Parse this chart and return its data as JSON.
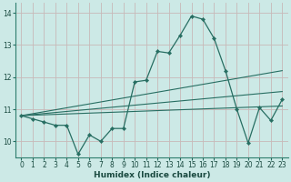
{
  "x": [
    0,
    1,
    2,
    3,
    4,
    5,
    6,
    7,
    8,
    9,
    10,
    11,
    12,
    13,
    14,
    15,
    16,
    17,
    18,
    19,
    20,
    21,
    22,
    23
  ],
  "y_main": [
    10.8,
    10.7,
    10.6,
    10.5,
    10.5,
    9.6,
    10.2,
    10.0,
    10.4,
    10.4,
    11.85,
    11.9,
    12.8,
    12.75,
    13.3,
    13.9,
    13.8,
    13.2,
    12.2,
    11.0,
    9.95,
    11.05,
    10.65,
    11.3
  ],
  "trend_lines": [
    {
      "x0": 0,
      "y0": 10.8,
      "x1": 23,
      "y1": 11.55
    },
    {
      "x0": 0,
      "y0": 10.8,
      "x1": 23,
      "y1": 12.2
    },
    {
      "x0": 0,
      "y0": 10.8,
      "x1": 23,
      "y1": 11.1
    }
  ],
  "line_color": "#276e62",
  "bg_color": "#cce9e6",
  "grid_color_major": "#b8d4d0",
  "grid_color_minor": "#d4e8e5",
  "xlabel": "Humidex (Indice chaleur)",
  "ylim": [
    9.5,
    14.3
  ],
  "xlim": [
    -0.5,
    23.5
  ],
  "yticks": [
    10,
    11,
    12,
    13,
    14
  ],
  "xticks": [
    0,
    1,
    2,
    3,
    4,
    5,
    6,
    7,
    8,
    9,
    10,
    11,
    12,
    13,
    14,
    15,
    16,
    17,
    18,
    19,
    20,
    21,
    22,
    23
  ],
  "tick_fontsize": 5.5,
  "xlabel_fontsize": 6.5,
  "lw_main": 0.9,
  "lw_trend": 0.8,
  "marker_size": 2.2
}
